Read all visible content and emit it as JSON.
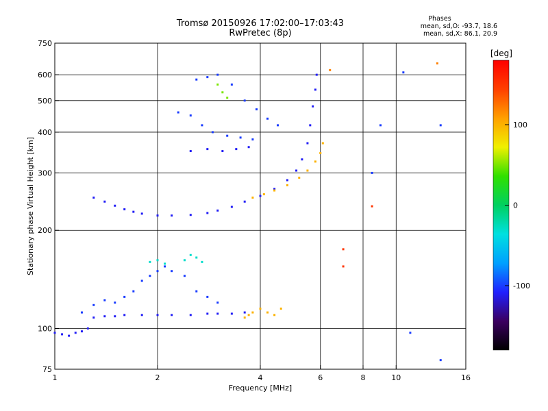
{
  "header": {
    "title_line1": "Tromsø 20150926 17:02:00–17:03:43",
    "title_line2": "RwPretec (8p)"
  },
  "phases": {
    "heading": "Phases",
    "line_o": "mean, sd,O: -93.7, 18.6",
    "line_x": "mean, sd,X:  86.1, 20.9"
  },
  "colorbar": {
    "label": "[deg]",
    "ticks": [
      {
        "label": "100",
        "value": 100
      },
      {
        "label": "0",
        "value": 0
      },
      {
        "label": "-100",
        "value": -100
      }
    ],
    "range": [
      -180,
      180
    ],
    "stops": [
      "#000000",
      "#3b0060",
      "#2020ff",
      "#00a0ff",
      "#00e0e0",
      "#00d060",
      "#30e000",
      "#f0f000",
      "#ffa000",
      "#ff4000",
      "#ff0000"
    ]
  },
  "chart_data": {
    "type": "scatter",
    "title": "Tromsø 20150926 17:02:00–17:03:43",
    "subtitle": "RwPretec (8p)",
    "xlabel": "Frequency [MHz]",
    "ylabel": "Stationary phase Virtual Height [km]",
    "x_scale": "log",
    "y_scale": "log",
    "xlim": [
      1,
      16
    ],
    "ylim": [
      75,
      750
    ],
    "xticks": [
      1,
      2,
      4,
      6,
      8,
      10,
      16
    ],
    "yticks": [
      75,
      100,
      200,
      300,
      400,
      500,
      600,
      750
    ],
    "x_gridlines": [
      2,
      4,
      6,
      8,
      10
    ],
    "y_gridlines": [
      100,
      200,
      300,
      400,
      500,
      600
    ],
    "grid": true,
    "color_scale": "phase (deg)",
    "series": [
      {
        "color_phase": -110,
        "points": [
          [
            1.0,
            97
          ],
          [
            1.05,
            96
          ],
          [
            1.1,
            95
          ],
          [
            1.15,
            97
          ],
          [
            1.2,
            98
          ],
          [
            1.25,
            100
          ]
        ]
      },
      {
        "color_phase": -110,
        "points": [
          [
            1.3,
            108
          ],
          [
            1.4,
            109
          ],
          [
            1.5,
            109
          ],
          [
            1.6,
            110
          ],
          [
            1.8,
            110
          ],
          [
            2.0,
            110
          ],
          [
            2.2,
            110
          ],
          [
            2.5,
            110
          ],
          [
            2.8,
            111
          ],
          [
            3.0,
            111
          ],
          [
            3.3,
            111
          ],
          [
            3.6,
            112
          ]
        ]
      },
      {
        "color_phase": -100,
        "points": [
          [
            1.2,
            112
          ],
          [
            1.3,
            118
          ],
          [
            1.4,
            122
          ],
          [
            1.5,
            120
          ],
          [
            1.6,
            125
          ],
          [
            1.7,
            130
          ],
          [
            1.8,
            140
          ],
          [
            1.9,
            145
          ],
          [
            2.0,
            150
          ],
          [
            2.1,
            155
          ],
          [
            2.2,
            150
          ],
          [
            2.4,
            145
          ],
          [
            2.6,
            130
          ],
          [
            2.8,
            125
          ],
          [
            3.0,
            120
          ]
        ]
      },
      {
        "color_phase": -30,
        "points": [
          [
            1.9,
            160
          ],
          [
            2.0,
            162
          ],
          [
            2.1,
            158
          ],
          [
            2.4,
            162
          ],
          [
            2.5,
            168
          ],
          [
            2.6,
            165
          ],
          [
            2.7,
            160
          ]
        ]
      },
      {
        "color_phase": 100,
        "points": [
          [
            3.6,
            108
          ],
          [
            3.7,
            110
          ],
          [
            3.8,
            112
          ],
          [
            4.0,
            115
          ],
          [
            4.2,
            112
          ],
          [
            4.4,
            110
          ],
          [
            4.6,
            115
          ]
        ]
      },
      {
        "color_phase": -110,
        "points": [
          [
            1.3,
            252
          ],
          [
            1.4,
            245
          ],
          [
            1.5,
            238
          ],
          [
            1.6,
            232
          ],
          [
            1.7,
            228
          ],
          [
            1.8,
            225
          ],
          [
            2.0,
            222
          ],
          [
            2.2,
            222
          ],
          [
            2.5,
            223
          ],
          [
            2.8,
            226
          ],
          [
            3.0,
            230
          ],
          [
            3.3,
            236
          ],
          [
            3.6,
            245
          ],
          [
            4.0,
            255
          ],
          [
            4.4,
            268
          ],
          [
            4.8,
            285
          ],
          [
            5.1,
            305
          ],
          [
            5.3,
            330
          ],
          [
            5.5,
            370
          ],
          [
            5.6,
            420
          ],
          [
            5.7,
            480
          ],
          [
            5.8,
            540
          ],
          [
            5.85,
            600
          ]
        ]
      },
      {
        "color_phase": 100,
        "points": [
          [
            3.8,
            252
          ],
          [
            4.1,
            258
          ],
          [
            4.4,
            265
          ],
          [
            4.8,
            275
          ],
          [
            5.2,
            290
          ],
          [
            5.5,
            305
          ],
          [
            5.8,
            325
          ],
          [
            6.0,
            345
          ],
          [
            6.1,
            370
          ]
        ]
      },
      {
        "color_phase": -100,
        "points": [
          [
            2.6,
            580
          ],
          [
            2.8,
            590
          ],
          [
            3.0,
            600
          ],
          [
            3.3,
            560
          ],
          [
            3.6,
            500
          ],
          [
            3.9,
            470
          ],
          [
            4.2,
            440
          ],
          [
            4.5,
            420
          ]
        ]
      },
      {
        "color_phase": -100,
        "points": [
          [
            2.3,
            460
          ],
          [
            2.5,
            450
          ],
          [
            2.7,
            420
          ],
          [
            2.9,
            400
          ],
          [
            3.2,
            390
          ],
          [
            3.5,
            385
          ],
          [
            3.8,
            380
          ]
        ]
      },
      {
        "color_phase": -110,
        "points": [
          [
            2.5,
            350
          ],
          [
            2.8,
            355
          ],
          [
            3.1,
            350
          ],
          [
            3.4,
            355
          ],
          [
            3.7,
            360
          ]
        ]
      },
      {
        "color_phase": 50,
        "points": [
          [
            3.0,
            560
          ],
          [
            3.1,
            530
          ],
          [
            3.2,
            510
          ]
        ]
      },
      {
        "color_phase": 120,
        "points": [
          [
            6.4,
            620
          ],
          [
            13.2,
            650
          ]
        ]
      },
      {
        "color_phase": -100,
        "points": [
          [
            8.5,
            300
          ],
          [
            9.0,
            420
          ],
          [
            10.5,
            610
          ],
          [
            11.0,
            97
          ],
          [
            13.5,
            80
          ],
          [
            13.5,
            420
          ]
        ]
      },
      {
        "color_phase": 150,
        "points": [
          [
            7.0,
            175
          ],
          [
            7.0,
            155
          ],
          [
            8.5,
            237
          ]
        ]
      }
    ]
  }
}
